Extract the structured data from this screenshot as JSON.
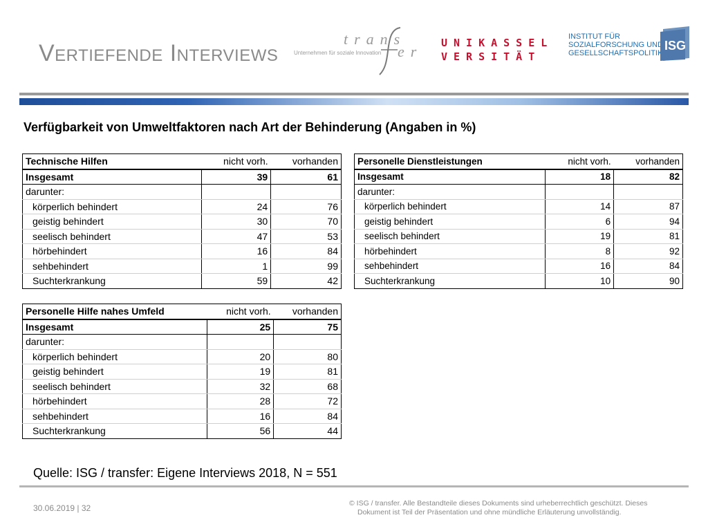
{
  "slide": {
    "title": "Vertiefende Interviews",
    "subtitle": "Verfügbarkeit von Umweltfaktoren nach Art der Behinderung (Angaben in %)"
  },
  "logos": {
    "transfer_word_1": "trans",
    "transfer_word_2": "er",
    "transfer_tagline": "Unternehmen für soziale Innovation",
    "uni_line1": "UNIKASSEL",
    "uni_line2": "VERSITÄT",
    "institute_line1": "INSTITUT FÜR",
    "institute_line2": "SOZIALFORSCHUNG UND",
    "institute_line3": "GESELLSCHAFTSPOLITIK",
    "isg": "ISG",
    "accent_blue": "#1f6fb3",
    "accent_red": "#c8102e"
  },
  "tables": {
    "tech": {
      "header": [
        "Technische Hilfen",
        "nicht vorh.",
        "vorhanden"
      ],
      "total": [
        "Insgesamt",
        "39",
        "61"
      ],
      "section": "darunter:",
      "rows": [
        [
          "körperlich behindert",
          "24",
          "76"
        ],
        [
          "geistig behindert",
          "30",
          "70"
        ],
        [
          "seelisch behindert",
          "47",
          "53"
        ],
        [
          "hörbehindert",
          "16",
          "84"
        ],
        [
          "sehbehindert",
          "1",
          "99"
        ],
        [
          "Suchterkrankung",
          "59",
          "42"
        ]
      ]
    },
    "personal": {
      "header": [
        "Personelle Dienstleistungen",
        "nicht vorh.",
        "vorhanden"
      ],
      "total": [
        "Insgesamt",
        "18",
        "82"
      ],
      "section": "darunter:",
      "rows": [
        [
          "körperlich behindert",
          "14",
          "87"
        ],
        [
          "geistig behindert",
          "6",
          "94"
        ],
        [
          "seelisch behindert",
          "19",
          "81"
        ],
        [
          "hörbehindert",
          "8",
          "92"
        ],
        [
          "sehbehindert",
          "16",
          "84"
        ],
        [
          "Suchterkrankung",
          "10",
          "90"
        ]
      ]
    },
    "help": {
      "header": [
        "Personelle Hilfe nahes Umfeld",
        "nicht vorh.",
        "vorhanden"
      ],
      "total": [
        "Insgesamt",
        "25",
        "75"
      ],
      "section": "darunter:",
      "rows": [
        [
          "körperlich behindert",
          "20",
          "80"
        ],
        [
          "geistig behindert",
          "19",
          "81"
        ],
        [
          "seelisch behindert",
          "32",
          "68"
        ],
        [
          "hörbehindert",
          "28",
          "72"
        ],
        [
          "sehbehindert",
          "16",
          "84"
        ],
        [
          "Suchterkrankung",
          "56",
          "44"
        ]
      ]
    }
  },
  "source": "Quelle: ISG / transfer: Eigene Interviews 2018, N = 551",
  "footer": {
    "date_page": "30.06.2019 | 32",
    "copyright_line1": "© ISG / transfer. Alle Bestandteile dieses Dokuments sind urheberrechtlich geschützt. Dieses",
    "copyright_line2": "Dokument ist Teil der Präsentation und ohne mündliche Erläuterung unvollständig."
  }
}
